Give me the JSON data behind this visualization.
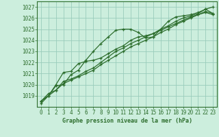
{
  "title": "Graphe pression niveau de la mer (hPa)",
  "bg_color": "#cceedd",
  "grid_color": "#99ccbb",
  "line_color": "#2d6e2d",
  "hours": [
    0,
    1,
    2,
    3,
    4,
    5,
    6,
    7,
    8,
    9,
    10,
    11,
    12,
    13,
    14,
    15,
    16,
    17,
    18,
    19,
    20,
    21,
    22,
    23
  ],
  "series1": [
    1018.5,
    1019.0,
    1019.9,
    1020.0,
    1020.9,
    1021.3,
    1022.2,
    1023.0,
    1023.7,
    1024.3,
    1024.9,
    1025.0,
    1025.0,
    1024.7,
    1024.2,
    1024.3,
    1025.0,
    1025.7,
    1026.1,
    1026.2,
    1026.3,
    1026.5,
    1026.8,
    1027.0
  ],
  "series2": [
    1018.5,
    1019.0,
    1020.0,
    1021.1,
    1021.2,
    1021.9,
    1022.1,
    1022.2,
    1022.4,
    1022.8,
    1023.2,
    1023.5,
    1024.0,
    1024.3,
    1024.4,
    1024.6,
    1025.0,
    1025.3,
    1025.7,
    1026.0,
    1026.2,
    1026.4,
    1026.8,
    1026.4
  ],
  "series3": [
    1018.5,
    1019.2,
    1019.5,
    1020.3,
    1020.5,
    1020.8,
    1021.2,
    1021.5,
    1022.0,
    1022.5,
    1023.0,
    1023.3,
    1023.7,
    1024.0,
    1024.3,
    1024.6,
    1024.9,
    1025.2,
    1025.5,
    1025.8,
    1026.1,
    1026.3,
    1026.6,
    1026.4
  ],
  "series4": [
    1018.3,
    1019.0,
    1019.5,
    1020.1,
    1020.4,
    1020.7,
    1021.0,
    1021.3,
    1021.8,
    1022.2,
    1022.6,
    1023.0,
    1023.4,
    1023.7,
    1024.0,
    1024.3,
    1024.7,
    1025.0,
    1025.4,
    1025.7,
    1026.0,
    1026.3,
    1026.5,
    1026.3
  ],
  "ylim": [
    1018.0,
    1027.5
  ],
  "yticks": [
    1019,
    1020,
    1021,
    1022,
    1023,
    1024,
    1025,
    1026,
    1027
  ],
  "xlim": [
    -0.5,
    23.5
  ],
  "xticks": [
    0,
    1,
    2,
    3,
    4,
    5,
    6,
    7,
    8,
    9,
    10,
    11,
    12,
    13,
    14,
    15,
    16,
    17,
    18,
    19,
    20,
    21,
    22,
    23
  ]
}
